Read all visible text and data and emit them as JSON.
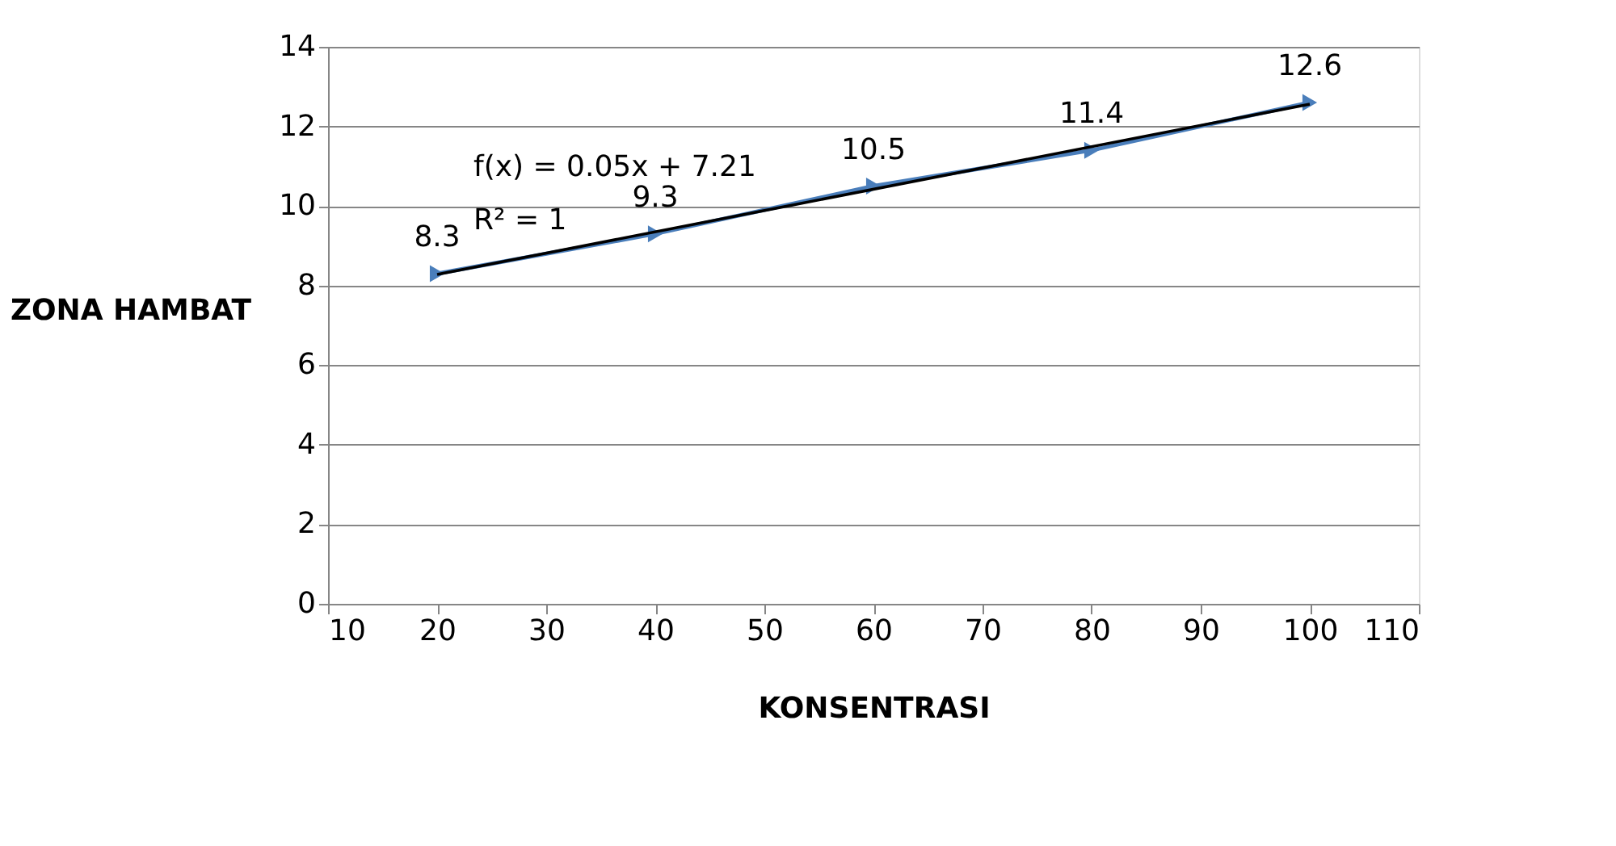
{
  "chart_data": {
    "type": "line",
    "xlabel": "KONSENTRASI",
    "ylabel": "ZONA HAMBAT",
    "x": [
      20,
      40,
      60,
      80,
      100
    ],
    "series": [
      {
        "color": "#4a7ebb",
        "values": [
          8.3,
          9.3,
          10.5,
          11.4,
          12.6
        ],
        "marker": "triangle",
        "data_labels": true
      },
      {
        "type": "line",
        "color": "#000000",
        "x": [
          20,
          100
        ],
        "values": [
          8.28,
          12.56
        ],
        "marker": "none"
      }
    ],
    "annotations": [
      "f(x) = 0.05x + 7.21",
      "R² = 1"
    ],
    "xlim": [
      10,
      110
    ],
    "xticks": [
      10,
      20,
      30,
      40,
      50,
      60,
      70,
      80,
      90,
      100,
      110
    ],
    "ylim": [
      0,
      14
    ],
    "yticks": [
      0,
      2,
      4,
      6,
      8,
      10,
      12,
      14
    ],
    "grid": "y"
  }
}
